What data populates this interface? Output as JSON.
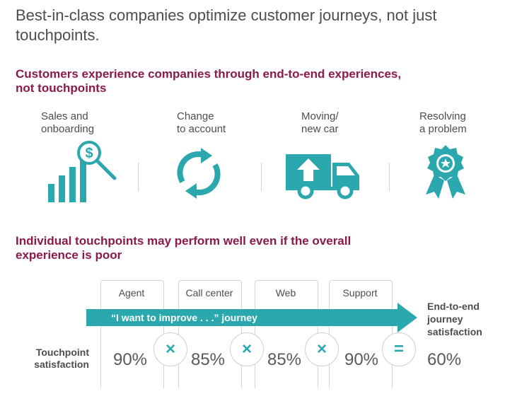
{
  "title": "Best-in-class companies optimize customer journeys, not just touchpoints.",
  "section1": {
    "heading": "Customers experience companies through end-to-end experiences, not touchpoints",
    "stages": [
      {
        "label": "Sales and\nonboarding",
        "icon": "sales-chart-magnifier-icon"
      },
      {
        "label": "Change\nto account",
        "icon": "refresh-arrows-icon"
      },
      {
        "label": "Moving/\nnew car",
        "icon": "moving-truck-icon"
      },
      {
        "label": "Resolving\na problem",
        "icon": "award-ribbon-icon"
      }
    ]
  },
  "section2": {
    "heading": "Individual touchpoints may perform well even if the overall experience is poor",
    "touchpoints": [
      {
        "label": "Agent",
        "value": "90%"
      },
      {
        "label": "Call center",
        "value": "85%"
      },
      {
        "label": "Web",
        "value": "85%"
      },
      {
        "label": "Support",
        "value": "90%"
      }
    ],
    "operators": [
      "×",
      "×",
      "×",
      "="
    ],
    "journey_label": "“I want to improve . . .” journey",
    "touchpoint_satisfaction_label": "Touchpoint satisfaction",
    "end_to_end_label": "End-to-end journey satisfaction",
    "end_to_end_value": "60%"
  },
  "colors": {
    "teal": "#2aa8ad",
    "heading": "#8a1a4a",
    "text": "#4d4d4d"
  }
}
